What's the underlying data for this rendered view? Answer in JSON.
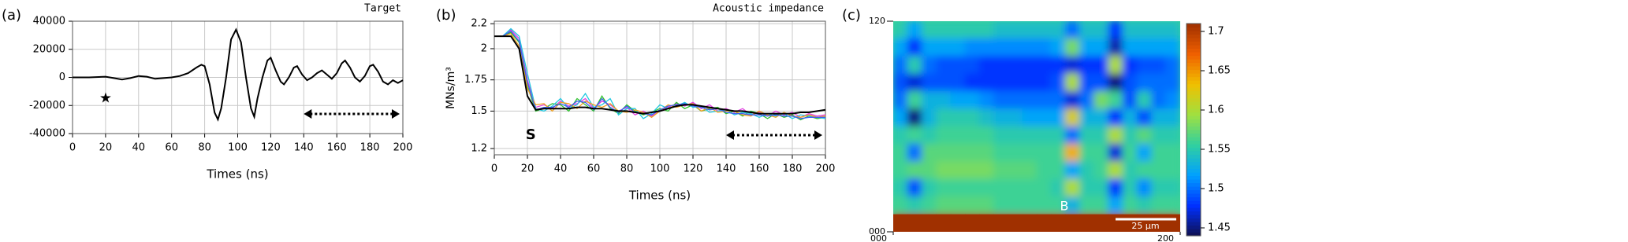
{
  "chart_data": [
    {
      "type": "line",
      "label": "(a)",
      "title": "Target",
      "x_label": "Times (ns)",
      "annotations": [
        "★"
      ],
      "x": [
        0,
        10,
        20,
        25,
        30,
        35,
        40,
        45,
        50,
        55,
        60,
        65,
        70,
        75,
        78,
        80,
        83,
        86,
        88,
        90,
        93,
        96,
        99,
        102,
        105,
        108,
        110,
        112,
        115,
        118,
        120,
        123,
        126,
        128,
        131,
        134,
        136,
        139,
        142,
        145,
        148,
        151,
        154,
        157,
        160,
        163,
        165,
        168,
        171,
        174,
        177,
        180,
        182,
        185,
        188,
        191,
        194,
        197,
        200
      ],
      "series": [
        {
          "color": "#000000",
          "values": [
            0,
            0,
            500,
            -500,
            -1500,
            -500,
            1000,
            500,
            -1000,
            -500,
            0,
            1000,
            3000,
            7000,
            9000,
            8000,
            -5000,
            -25000,
            -30000,
            -22000,
            0,
            27000,
            34000,
            25000,
            0,
            -22000,
            -28000,
            -15000,
            0,
            12000,
            14000,
            5000,
            -3000,
            -5000,
            0,
            7000,
            8000,
            2000,
            -2000,
            0,
            3000,
            5000,
            2000,
            -1000,
            3000,
            10000,
            12000,
            7000,
            0,
            -3000,
            1000,
            8000,
            9000,
            4000,
            -3000,
            -5000,
            -2000,
            -4000,
            -2000
          ]
        }
      ],
      "xlim": [
        0,
        200
      ],
      "xticks": [
        0,
        20,
        40,
        60,
        80,
        100,
        120,
        140,
        160,
        180,
        200
      ],
      "ylim": [
        -40000,
        40000
      ],
      "yticks": [
        40000,
        20000,
        0,
        -20000,
        -40000
      ],
      "grid": true
    },
    {
      "type": "line",
      "label": "(b)",
      "title": "Acoustic impedance",
      "x_label": "Times (ns)",
      "y_label": "MNs/m³",
      "annotations": [
        "S"
      ],
      "x": [
        0,
        5,
        10,
        15,
        20,
        25,
        30,
        35,
        40,
        45,
        50,
        55,
        60,
        65,
        70,
        75,
        80,
        85,
        90,
        95,
        100,
        105,
        110,
        115,
        120,
        125,
        130,
        135,
        140,
        145,
        150,
        155,
        160,
        165,
        170,
        175,
        180,
        185,
        190,
        195,
        200
      ],
      "series": [
        {
          "color": "#e040e0",
          "values": [
            2.1,
            2.1,
            2.15,
            2.08,
            1.75,
            1.53,
            1.55,
            1.52,
            1.58,
            1.54,
            1.56,
            1.6,
            1.52,
            1.58,
            1.55,
            1.5,
            1.53,
            1.47,
            1.5,
            1.46,
            1.5,
            1.53,
            1.56,
            1.54,
            1.57,
            1.52,
            1.55,
            1.5,
            1.52,
            1.49,
            1.52,
            1.47,
            1.49,
            1.46,
            1.5,
            1.47,
            1.49,
            1.45,
            1.48,
            1.46,
            1.47
          ]
        },
        {
          "color": "#30c030",
          "values": [
            2.1,
            2.1,
            2.13,
            2.05,
            1.7,
            1.5,
            1.52,
            1.56,
            1.55,
            1.5,
            1.6,
            1.55,
            1.5,
            1.62,
            1.52,
            1.48,
            1.55,
            1.5,
            1.47,
            1.49,
            1.52,
            1.5,
            1.57,
            1.52,
            1.55,
            1.5,
            1.52,
            1.53,
            1.48,
            1.5,
            1.46,
            1.5,
            1.48,
            1.44,
            1.48,
            1.45,
            1.47,
            1.43,
            1.46,
            1.44,
            1.45
          ]
        },
        {
          "color": "#20c8e0",
          "values": [
            2.1,
            2.1,
            2.16,
            2.1,
            1.8,
            1.52,
            1.5,
            1.54,
            1.6,
            1.52,
            1.55,
            1.64,
            1.53,
            1.55,
            1.6,
            1.47,
            1.52,
            1.52,
            1.44,
            1.48,
            1.55,
            1.52,
            1.54,
            1.57,
            1.53,
            1.54,
            1.49,
            1.5,
            1.51,
            1.47,
            1.49,
            1.48,
            1.45,
            1.48,
            1.46,
            1.48,
            1.44,
            1.47,
            1.46,
            1.45,
            1.44
          ]
        },
        {
          "color": "#f0a020",
          "values": [
            2.1,
            2.1,
            2.12,
            2.02,
            1.68,
            1.55,
            1.56,
            1.5,
            1.57,
            1.56,
            1.52,
            1.58,
            1.55,
            1.53,
            1.56,
            1.5,
            1.49,
            1.51,
            1.49,
            1.45,
            1.5,
            1.55,
            1.53,
            1.55,
            1.56,
            1.5,
            1.53,
            1.49,
            1.5,
            1.5,
            1.47,
            1.46,
            1.5,
            1.47,
            1.45,
            1.49,
            1.46,
            1.45,
            1.47,
            1.45,
            1.46
          ]
        },
        {
          "color": "#4060f0",
          "values": [
            2.1,
            2.1,
            2.14,
            2.06,
            1.73,
            1.51,
            1.53,
            1.53,
            1.56,
            1.53,
            1.58,
            1.57,
            1.51,
            1.6,
            1.53,
            1.49,
            1.54,
            1.49,
            1.48,
            1.47,
            1.51,
            1.54,
            1.55,
            1.56,
            1.54,
            1.53,
            1.51,
            1.52,
            1.49,
            1.48,
            1.48,
            1.47,
            1.47,
            1.46,
            1.47,
            1.46,
            1.46,
            1.44,
            1.45,
            1.45,
            1.45
          ]
        },
        {
          "color": "#000000",
          "values": [
            2.1,
            2.1,
            2.1,
            2.0,
            1.62,
            1.51,
            1.52,
            1.52,
            1.52,
            1.52,
            1.53,
            1.53,
            1.52,
            1.52,
            1.51,
            1.5,
            1.5,
            1.49,
            1.48,
            1.49,
            1.5,
            1.52,
            1.54,
            1.55,
            1.55,
            1.54,
            1.53,
            1.52,
            1.51,
            1.5,
            1.5,
            1.49,
            1.48,
            1.48,
            1.48,
            1.48,
            1.48,
            1.49,
            1.49,
            1.5,
            1.51
          ]
        }
      ],
      "xlim": [
        0,
        200
      ],
      "xticks": [
        0,
        20,
        40,
        60,
        80,
        100,
        120,
        140,
        160,
        180,
        200
      ],
      "ylim": [
        1.15,
        2.22
      ],
      "yticks": [
        2.2,
        2,
        1.75,
        1.5,
        1.2
      ],
      "grid": true
    },
    {
      "type": "heatmap",
      "label": "(c)",
      "annotations": [
        "B",
        "25 µm"
      ],
      "z": [
        [
          1.55,
          1.52,
          1.55,
          1.55,
          1.55,
          1.55,
          1.55,
          1.54,
          1.54,
          1.54,
          1.54,
          1.54,
          1.5,
          1.54,
          1.54,
          1.48,
          1.54,
          1.54,
          1.54,
          1.54
        ],
        [
          1.52,
          1.48,
          1.52,
          1.52,
          1.52,
          1.51,
          1.51,
          1.51,
          1.51,
          1.51,
          1.51,
          1.52,
          1.58,
          1.52,
          1.52,
          1.46,
          1.52,
          1.52,
          1.52,
          1.52
        ],
        [
          1.5,
          1.55,
          1.5,
          1.49,
          1.49,
          1.49,
          1.48,
          1.48,
          1.48,
          1.48,
          1.48,
          1.48,
          1.47,
          1.48,
          1.48,
          1.6,
          1.48,
          1.49,
          1.49,
          1.5
        ],
        [
          1.49,
          1.47,
          1.49,
          1.49,
          1.49,
          1.48,
          1.48,
          1.48,
          1.48,
          1.48,
          1.48,
          1.49,
          1.6,
          1.49,
          1.49,
          1.45,
          1.49,
          1.5,
          1.5,
          1.5
        ],
        [
          1.5,
          1.56,
          1.53,
          1.53,
          1.52,
          1.52,
          1.51,
          1.5,
          1.5,
          1.5,
          1.5,
          1.5,
          1.47,
          1.5,
          1.58,
          1.56,
          1.49,
          1.55,
          1.5,
          1.51
        ],
        [
          1.52,
          1.45,
          1.53,
          1.55,
          1.55,
          1.55,
          1.54,
          1.53,
          1.53,
          1.52,
          1.52,
          1.52,
          1.62,
          1.53,
          1.53,
          1.48,
          1.53,
          1.49,
          1.53,
          1.53
        ],
        [
          1.55,
          1.56,
          1.55,
          1.56,
          1.56,
          1.56,
          1.56,
          1.55,
          1.55,
          1.55,
          1.55,
          1.55,
          1.5,
          1.55,
          1.55,
          1.6,
          1.55,
          1.57,
          1.55,
          1.55
        ],
        [
          1.56,
          1.5,
          1.57,
          1.57,
          1.57,
          1.57,
          1.57,
          1.56,
          1.56,
          1.56,
          1.56,
          1.56,
          1.64,
          1.56,
          1.56,
          1.47,
          1.56,
          1.52,
          1.56,
          1.56
        ],
        [
          1.56,
          1.57,
          1.57,
          1.58,
          1.58,
          1.58,
          1.58,
          1.57,
          1.57,
          1.57,
          1.56,
          1.56,
          1.52,
          1.55,
          1.56,
          1.6,
          1.55,
          1.56,
          1.56,
          1.56
        ],
        [
          1.55,
          1.49,
          1.55,
          1.56,
          1.56,
          1.56,
          1.56,
          1.56,
          1.56,
          1.56,
          1.56,
          1.55,
          1.6,
          1.55,
          1.55,
          1.48,
          1.55,
          1.51,
          1.55,
          1.55
        ],
        [
          1.56,
          1.55,
          1.56,
          1.57,
          1.57,
          1.57,
          1.57,
          1.56,
          1.56,
          1.56,
          1.56,
          1.56,
          1.53,
          1.56,
          1.56,
          1.52,
          1.56,
          1.55,
          1.56,
          1.56
        ],
        [
          1.71,
          1.71,
          1.71,
          1.71,
          1.71,
          1.71,
          1.71,
          1.71,
          1.71,
          1.71,
          1.71,
          1.71,
          1.71,
          1.71,
          1.71,
          1.71,
          1.71,
          1.71,
          1.71,
          1.71
        ]
      ],
      "zlim": [
        1.44,
        1.71
      ],
      "colormap": [
        "#101050",
        "#0030ff",
        "#00a0ff",
        "#30d0a0",
        "#a0e040",
        "#f0c000",
        "#f06000",
        "#a03000"
      ],
      "colorbar_ticks": [
        1.7,
        1.65,
        1.6,
        1.55,
        1.5,
        1.45
      ],
      "xlim": [
        0,
        200
      ],
      "xticks": [
        {
          "value": 0,
          "label": "000"
        },
        200
      ],
      "ylim": [
        0,
        120
      ],
      "yticks": [
        {
          "value": 0,
          "label": "000"
        },
        120
      ]
    }
  ]
}
